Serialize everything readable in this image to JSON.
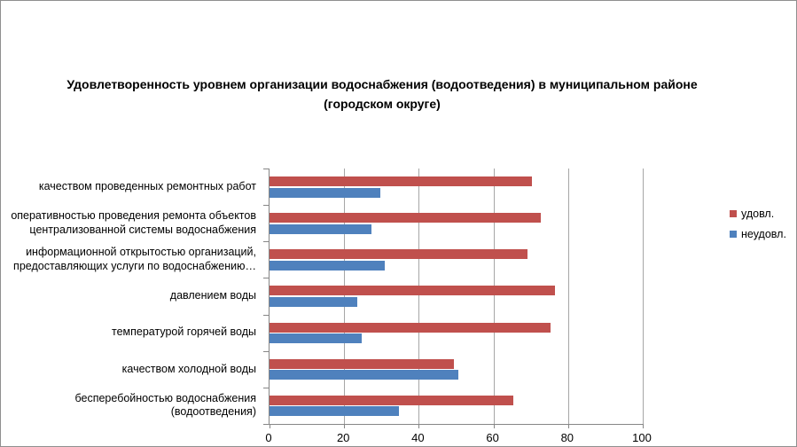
{
  "title_display": "Удовлетворенность уровнем организации водоснабжения (водоотведения) в муниципальном районе\n(городском округе)",
  "legend": [
    {
      "label": "удовл.",
      "color": "#C0504D"
    },
    {
      "label": "неудовл.",
      "color": "#4F81BD"
    }
  ],
  "chart_data": {
    "type": "bar",
    "orientation": "horizontal",
    "title": "Удовлетворенность уровнем организации водоснабжения (водоотведения) в муниципальном районе (городском округе)",
    "categories": [
      "качеством проведенных ремонтных работ",
      "оперативностью проведения ремонта объектов\nцентрализованной системы водоснабжения",
      "информационной открытостью организаций,\nпредоставляющих услуги по водоснабжению…",
      "давлением воды",
      "температурой горячей воды",
      "качеством холодной воды",
      "бесперебойностью водоснабжения\n(водоотведения)"
    ],
    "series": [
      {
        "name": "удовл.",
        "color": "#C0504D",
        "values": [
          70.4,
          72.8,
          69.1,
          76.6,
          75.3,
          49.3,
          65.4
        ]
      },
      {
        "name": "неудовл.",
        "color": "#4F81BD",
        "values": [
          29.6,
          27.2,
          30.9,
          23.4,
          24.7,
          50.7,
          34.6
        ]
      }
    ],
    "xlim": [
      0,
      100
    ],
    "x_ticks": [
      0,
      20,
      40,
      60,
      80,
      100
    ],
    "grid": true,
    "legend_position": "right",
    "xlabel": "",
    "ylabel": ""
  }
}
